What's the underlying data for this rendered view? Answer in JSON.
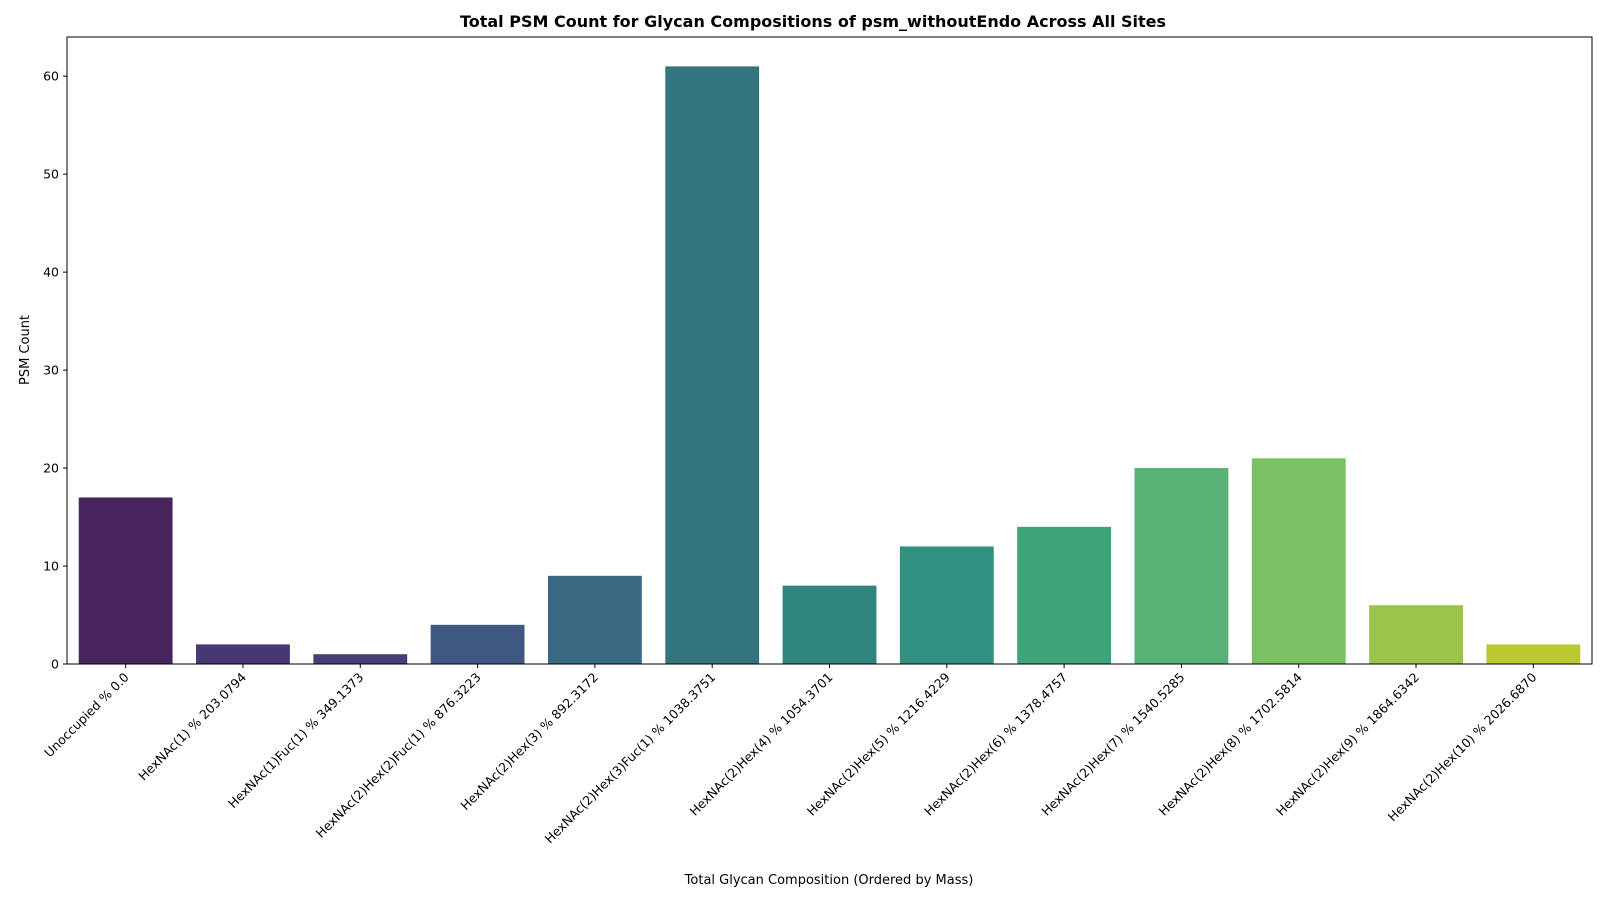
{
  "chart_data": {
    "type": "bar",
    "title": "Total PSM Count for Glycan Compositions of psm_withoutEndo Across All Sites",
    "xlabel": "Total Glycan Composition (Ordered by Mass)",
    "ylabel": "PSM Count",
    "ylim": [
      0,
      64
    ],
    "yticks": [
      0,
      10,
      20,
      30,
      40,
      50,
      60
    ],
    "grid": false,
    "categories": [
      "Unoccupied % 0.0",
      "HexNAc(1) % 203.0794",
      "HexNAc(1)Fuc(1) % 349.1373",
      "HexNAc(2)Hex(2)Fuc(1) % 876.3223",
      "HexNAc(2)Hex(3) % 892.3172",
      "HexNAc(2)Hex(3)Fuc(1) % 1038.3751",
      "HexNAc(2)Hex(4) % 1054.3701",
      "HexNAc(2)Hex(5) % 1216.4229",
      "HexNAc(2)Hex(6) % 1378.4757",
      "HexNAc(2)Hex(7) % 1540.5285",
      "HexNAc(2)Hex(8) % 1702.5814",
      "HexNAc(2)Hex(9) % 1864.6342",
      "HexNAc(2)Hex(10) % 2026.6870"
    ],
    "values": [
      17,
      2,
      1,
      4,
      9,
      61,
      8,
      12,
      14,
      20,
      21,
      6,
      2
    ],
    "colors": [
      "#48245e",
      "#473773",
      "#443e79",
      "#3f5882",
      "#3a6882",
      "#33757f",
      "#2f847e",
      "#319180",
      "#3ea47a",
      "#59b275",
      "#7ac166",
      "#9ac54a",
      "#bcc833"
    ]
  }
}
